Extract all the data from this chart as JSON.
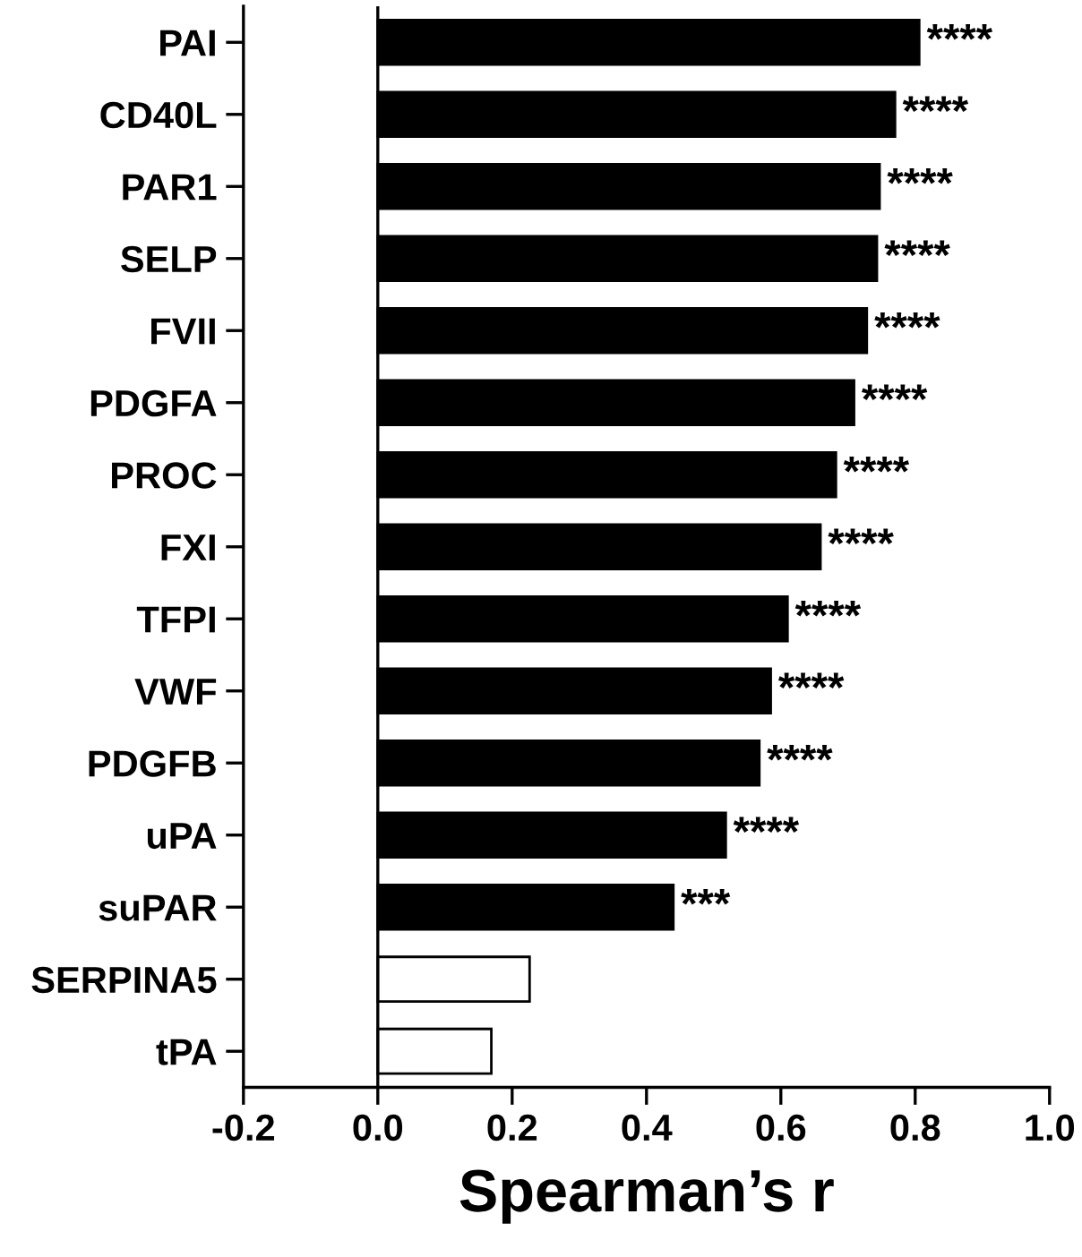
{
  "chart_data": {
    "type": "bar",
    "orientation": "horizontal",
    "xlabel": "Spearman’s r",
    "categories": [
      "PAI",
      "CD40L",
      "PAR1",
      "SELP",
      "FVII",
      "PDGFA",
      "PROC",
      "FXI",
      "TFPI",
      "VWF",
      "PDGFB",
      "uPA",
      "suPAR",
      "SERPINA5",
      "tPA"
    ],
    "values": [
      0.806,
      0.77,
      0.747,
      0.743,
      0.728,
      0.709,
      0.682,
      0.659,
      0.61,
      0.585,
      0.568,
      0.518,
      0.44,
      0.226,
      0.169
    ],
    "colors": [
      "#000000",
      "#000000",
      "#000000",
      "#000000",
      "#000000",
      "#000000",
      "#000000",
      "#000000",
      "#000000",
      "#000000",
      "#000000",
      "#000000",
      "#000000",
      "#ffffff",
      "#ffffff"
    ],
    "value_labels": [
      "****",
      "****",
      "****",
      "****",
      "****",
      "****",
      "****",
      "****",
      "****",
      "****",
      "****",
      "****",
      "***",
      null,
      null
    ],
    "xlim": [
      -0.2,
      1.0
    ],
    "xticks": [
      {
        "value": -0.2,
        "label": "-0.2"
      },
      {
        "value": 0.0,
        "label": "0.0"
      },
      {
        "value": 0.2,
        "label": "0.2"
      },
      {
        "value": 0.4,
        "label": "0.4"
      },
      {
        "value": 0.6,
        "label": "0.6"
      },
      {
        "value": 0.8,
        "label": "0.8"
      },
      {
        "value": 1.0,
        "label": "1.0"
      }
    ],
    "ref_lines": [
      {
        "axis": "x",
        "value": 0,
        "color": "#000000",
        "line_style": "solid"
      }
    ],
    "grid": false,
    "legend": false
  }
}
